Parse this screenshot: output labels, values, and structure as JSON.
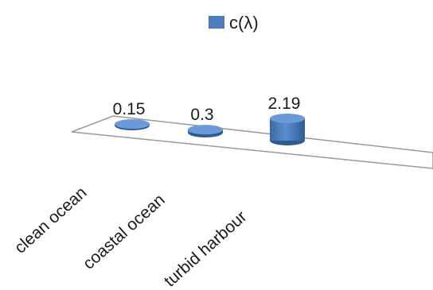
{
  "chart_data": {
    "type": "bar",
    "style": "3d-cylinder",
    "categories": [
      "clean ocean",
      "coastal ocean",
      "turbid harbour"
    ],
    "series": [
      {
        "name": "c(λ)",
        "values": [
          0.15,
          0.3,
          2.19
        ],
        "color": "#4a7ebb"
      }
    ],
    "data_labels": [
      "0.15",
      "0.3",
      "2.19"
    ],
    "legend": {
      "position": "top",
      "label": "c(λ)"
    },
    "grid": false,
    "title": "",
    "xlabel": "",
    "ylabel": ""
  }
}
